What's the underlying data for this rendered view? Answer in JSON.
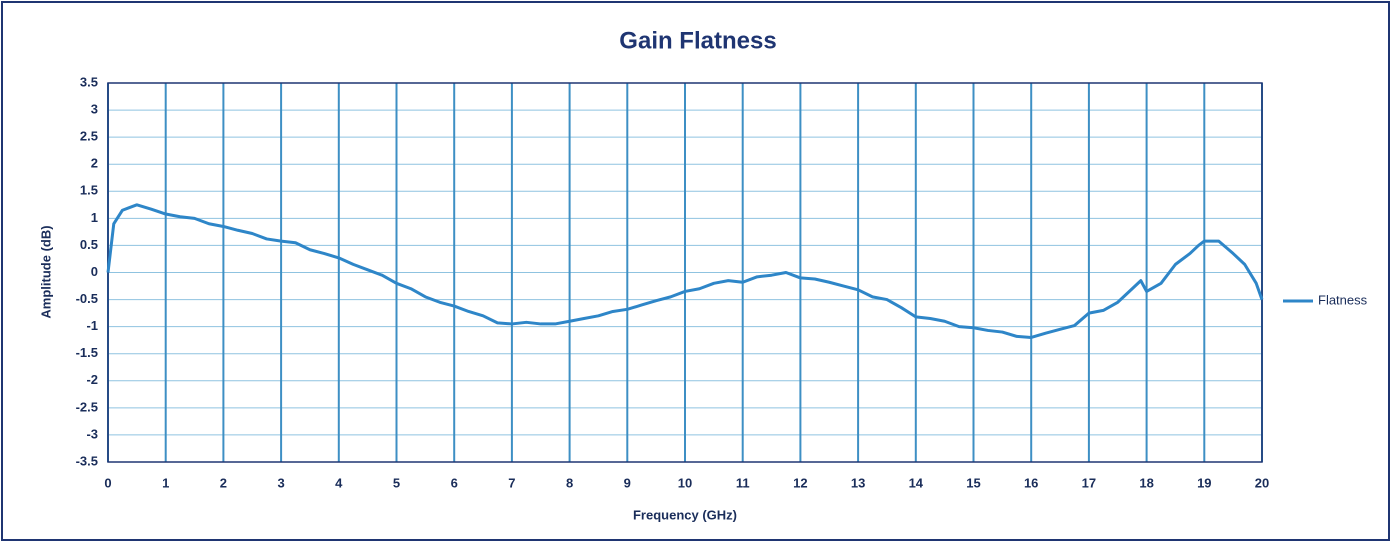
{
  "chart_data": {
    "type": "line",
    "title": "Gain Flatness",
    "x_label": "Frequency (GHz)",
    "y_label": "Amplitude (dB)",
    "x": [
      0,
      0.1,
      0.25,
      0.5,
      0.75,
      1,
      1.25,
      1.5,
      1.75,
      2,
      2.25,
      2.5,
      2.75,
      3,
      3.25,
      3.5,
      3.75,
      4,
      4.25,
      4.5,
      4.75,
      5,
      5.25,
      5.5,
      5.75,
      6,
      6.25,
      6.5,
      6.75,
      7,
      7.25,
      7.5,
      7.75,
      8,
      8.25,
      8.5,
      8.75,
      9,
      9.25,
      9.5,
      9.75,
      10,
      10.25,
      10.5,
      10.75,
      11,
      11.25,
      11.5,
      11.75,
      12,
      12.25,
      12.5,
      12.75,
      13,
      13.25,
      13.5,
      13.75,
      14,
      14.25,
      14.5,
      14.75,
      15,
      15.25,
      15.5,
      15.75,
      16,
      16.25,
      16.5,
      16.75,
      17,
      17.25,
      17.5,
      17.75,
      17.9,
      18,
      18.25,
      18.5,
      18.75,
      18.9,
      19,
      19.25,
      19.5,
      19.7,
      19.9,
      20
    ],
    "series": [
      {
        "name": "Flatness",
        "color": "#2e86c8",
        "values": [
          0,
          0.9,
          1.15,
          1.25,
          1.17,
          1.08,
          1.03,
          1.0,
          0.9,
          0.85,
          0.78,
          0.72,
          0.62,
          0.58,
          0.55,
          0.42,
          0.35,
          0.27,
          0.15,
          0.05,
          -0.05,
          -0.2,
          -0.3,
          -0.45,
          -0.55,
          -0.62,
          -0.72,
          -0.8,
          -0.93,
          -0.95,
          -0.92,
          -0.95,
          -0.95,
          -0.9,
          -0.85,
          -0.8,
          -0.72,
          -0.68,
          -0.6,
          -0.52,
          -0.45,
          -0.35,
          -0.3,
          -0.2,
          -0.15,
          -0.18,
          -0.08,
          -0.05,
          0.0,
          -0.1,
          -0.12,
          -0.18,
          -0.25,
          -0.32,
          -0.45,
          -0.5,
          -0.65,
          -0.82,
          -0.85,
          -0.9,
          -1.0,
          -1.02,
          -1.07,
          -1.1,
          -1.18,
          -1.2,
          -1.12,
          -1.05,
          -0.98,
          -0.75,
          -0.7,
          -0.55,
          -0.3,
          -0.15,
          -0.35,
          -0.2,
          0.15,
          0.35,
          0.5,
          0.58,
          0.58,
          0.35,
          0.15,
          -0.2,
          -0.5
        ]
      }
    ],
    "xlim": [
      0,
      20
    ],
    "xticks": [
      0,
      1,
      2,
      3,
      4,
      5,
      6,
      7,
      8,
      9,
      10,
      11,
      12,
      13,
      14,
      15,
      16,
      17,
      18,
      19,
      20
    ],
    "ylim": [
      -3.5,
      3.5
    ],
    "yticks": [
      -3.5,
      -3,
      -2.5,
      -2,
      -1.5,
      -1,
      -0.5,
      0,
      0.5,
      1,
      1.5,
      2,
      2.5,
      3,
      3.5
    ],
    "grid": true,
    "legend": "right"
  }
}
